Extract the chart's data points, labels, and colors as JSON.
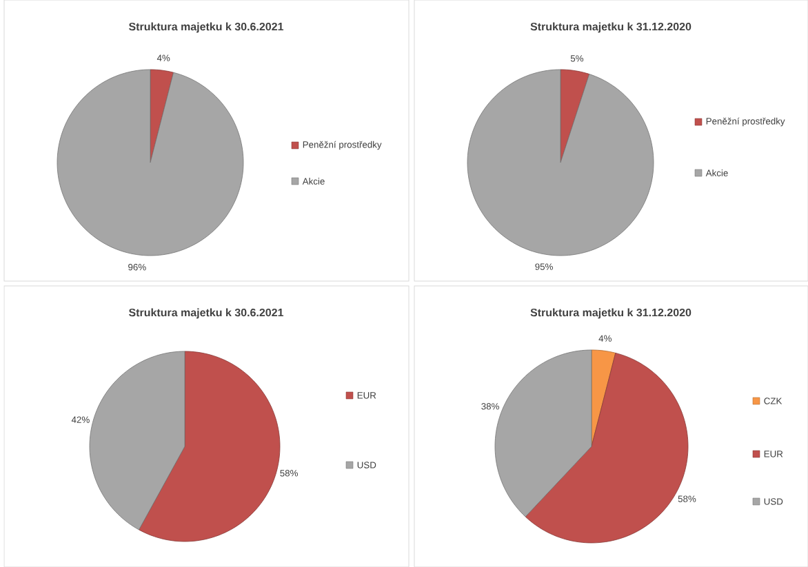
{
  "chart_data": [
    {
      "type": "pie",
      "title": "Struktura majetku k 30.6.2021",
      "categories": [
        "Peněžní prostředky",
        "Akcie"
      ],
      "values": [
        4,
        96
      ],
      "colors": [
        "#c0504d",
        "#a6a6a6"
      ],
      "value_labels": [
        "4%",
        "96%"
      ],
      "legend": "right"
    },
    {
      "type": "pie",
      "title": "Struktura majetku k 31.12.2020",
      "categories": [
        "Peněžní prostředky",
        "Akcie"
      ],
      "values": [
        5,
        95
      ],
      "colors": [
        "#c0504d",
        "#a6a6a6"
      ],
      "value_labels": [
        "5%",
        "95%"
      ],
      "legend": "right"
    },
    {
      "type": "pie",
      "title": "Struktura majetku k 30.6.2021",
      "categories": [
        "EUR",
        "USD"
      ],
      "values": [
        58,
        42
      ],
      "colors": [
        "#c0504d",
        "#a6a6a6"
      ],
      "value_labels": [
        "58%",
        "42%"
      ],
      "legend": "right"
    },
    {
      "type": "pie",
      "title": "Struktura majetku k 31.12.2020",
      "categories": [
        "CZK",
        "EUR",
        "USD"
      ],
      "values": [
        4,
        58,
        38
      ],
      "colors": [
        "#f79646",
        "#c0504d",
        "#a6a6a6"
      ],
      "value_labels": [
        "4%",
        "58%",
        "38%"
      ],
      "legend": "right"
    }
  ]
}
